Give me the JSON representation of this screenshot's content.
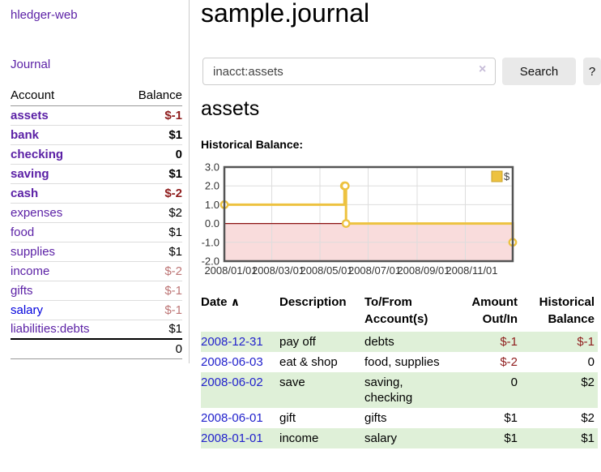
{
  "colors": {
    "link_purple": "#5a1fa5",
    "link_blue": "#0000dd",
    "date_link_blue": "#2222cc",
    "negative_strong": "#8f1d1d",
    "negative_soft": "#bd7575",
    "row_green": "#dff0d8"
  },
  "sidebar": {
    "brand": "hledger-web",
    "journal_link": "Journal",
    "accounts": {
      "headers": {
        "account": "Account",
        "balance": "Balance"
      },
      "rows": [
        {
          "name": "assets",
          "balance": "$-1",
          "indent": 1,
          "bold": true
        },
        {
          "name": "bank",
          "balance": "$1",
          "indent": 2,
          "bold": true
        },
        {
          "name": "checking",
          "balance": "0",
          "indent": 3,
          "bold": true
        },
        {
          "name": "saving",
          "balance": "$1",
          "indent": 3,
          "bold": true
        },
        {
          "name": "cash",
          "balance": "$-2",
          "indent": 2,
          "bold": true
        },
        {
          "name": "expenses",
          "balance": "$2",
          "indent": 1
        },
        {
          "name": "food",
          "balance": "$1",
          "indent": 2
        },
        {
          "name": "supplies",
          "balance": "$1",
          "indent": 2
        },
        {
          "name": "income",
          "balance": "$-2",
          "indent": 1
        },
        {
          "name": "gifts",
          "balance": "$-1",
          "indent": 2
        },
        {
          "name": "salary",
          "balance": "$-1",
          "indent": 2,
          "blue": true
        },
        {
          "name": "liabilities:debts",
          "balance": "$1",
          "indent": 1
        }
      ],
      "total": "0"
    }
  },
  "header": {
    "title": "sample.journal"
  },
  "search": {
    "value": "inacct:assets",
    "clear_icon": "×",
    "search_button": "Search",
    "help_button": "?"
  },
  "main": {
    "account_heading": "assets",
    "chart_title": "Historical Balance:"
  },
  "chart_data": {
    "type": "line",
    "step": true,
    "series": [
      {
        "name": "$",
        "points": [
          [
            "2008-01-01",
            1
          ],
          [
            "2008-06-01",
            2
          ],
          [
            "2008-06-02",
            2
          ],
          [
            "2008-06-03",
            0
          ],
          [
            "2008-12-31",
            -1
          ]
        ]
      }
    ],
    "x_range": [
      "2008-01-01",
      "2008-12-31"
    ],
    "ylim": [
      -2,
      3
    ],
    "yticks": [
      3,
      2,
      1,
      0,
      -1,
      -2
    ],
    "ytick_labels": [
      "3.0",
      "2.0",
      "1.0",
      "0.0",
      "-1.0",
      "-2.0"
    ],
    "xticks": [
      "2008-01-01",
      "2008-03-01",
      "2008-05-01",
      "2008-07-01",
      "2008-09-01",
      "2008-11-01"
    ],
    "xtick_labels": [
      "2008/01/01",
      "2008/03/01",
      "2008/05/01",
      "2008/07/01",
      "2008/09/01",
      "2008/11/01"
    ],
    "legend": {
      "label": "$",
      "position": "top-right"
    },
    "grid": true,
    "colors": {
      "line": "#edc240",
      "marker_fill": "#ffffff",
      "negative_region": "#f9dcdc",
      "zero_line": "#8b1111",
      "grid": "#dddddd",
      "border": "#545454",
      "legend_swatch_border": "#c9a22b",
      "tick_text": "#333333"
    }
  },
  "register_table": {
    "headers": [
      "Date",
      "Description",
      "To/From Account(s)",
      "Amount Out/In",
      "Historical Balance"
    ],
    "sort_indicator": "∧",
    "rows": [
      {
        "date": "2008-12-31",
        "description": "pay off",
        "accounts": "debts",
        "amount": "$-1",
        "balance": "$-1"
      },
      {
        "date": "2008-06-03",
        "description": "eat & shop",
        "accounts": "food, supplies",
        "amount": "$-2",
        "balance": "0"
      },
      {
        "date": "2008-06-02",
        "description": "save",
        "accounts": "saving, checking",
        "amount": "0",
        "balance": "$2"
      },
      {
        "date": "2008-06-01",
        "description": "gift",
        "accounts": "gifts",
        "amount": "$1",
        "balance": "$2"
      },
      {
        "date": "2008-01-01",
        "description": "income",
        "accounts": "salary",
        "amount": "$1",
        "balance": "$1"
      }
    ]
  }
}
